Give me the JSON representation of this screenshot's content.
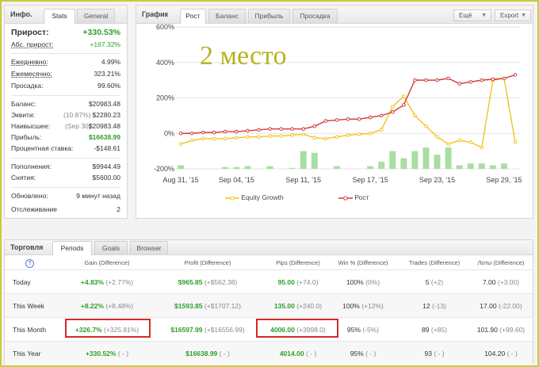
{
  "colors": {
    "green": "#2e9e2e",
    "red_line": "#d43a3a",
    "yellow_line": "#f0c419",
    "bar": "#a9dea2",
    "highlight": "#d22a2a",
    "frame": "#c8cc3a"
  },
  "info": {
    "title": "Инфо.",
    "tabs": [
      "Stats",
      "General"
    ],
    "rows": [
      {
        "label": "Прирост:",
        "value": "+330.53%"
      },
      {
        "label": "Абс. прирост:",
        "value": "+167.32%"
      },
      {
        "label": "Ежедневно:",
        "value": "4.99%"
      },
      {
        "label": "Ежемесячно:",
        "value": "323.21%"
      },
      {
        "label": "Просадка:",
        "value": "99.60%"
      },
      {
        "label": "Баланс:",
        "value": "$20983.48"
      },
      {
        "label": "Эквити:",
        "note": "(10.87%)",
        "value": "$2280.23"
      },
      {
        "label": "Наивысшее:",
        "note": "(Sep 30)",
        "value": "$20983.48"
      },
      {
        "label": "Прибыль:",
        "value": "$16638.99"
      },
      {
        "label": "Процентная ставка:",
        "value": "-$148.61"
      },
      {
        "label": "Пополнения:",
        "value": "$9944.49"
      },
      {
        "label": "Снятия:",
        "value": "$5600.00"
      },
      {
        "label": "Обновлено:",
        "value": "9 минут назад"
      },
      {
        "label": "Отслеживание",
        "value": "2"
      }
    ]
  },
  "graph": {
    "title": "График",
    "tabs": [
      "Рост",
      "Баланс",
      "Прибыль",
      "Просадка"
    ],
    "menu_label": "Ещё",
    "export_label": "Export",
    "overlay_text": "2 место",
    "caret": "▼"
  },
  "chart_data": {
    "type": "line",
    "ylim": [
      -200,
      600
    ],
    "yticks": [
      "600%",
      "400%",
      "200%",
      "0%",
      "-200%"
    ],
    "yticks_values": [
      600,
      400,
      200,
      0,
      -200
    ],
    "xlabels": [
      "Aug 31, '15",
      "Sep 04, '15",
      "Sep 11, '15",
      "Sep 17, '15",
      "Sep 23, '15",
      "Sep 29, '15"
    ],
    "xlabels_index": [
      0,
      5,
      11,
      17,
      23,
      29
    ],
    "n": 31,
    "series": [
      {
        "name": "Equity Growth",
        "values": [
          -60,
          -40,
          -30,
          -30,
          -30,
          -25,
          -20,
          -20,
          -15,
          -15,
          -10,
          -5,
          -25,
          -30,
          -20,
          -10,
          -5,
          0,
          20,
          150,
          210,
          100,
          40,
          -20,
          -60,
          -40,
          -50,
          -80,
          300,
          310,
          -50
        ]
      },
      {
        "name": "Рост",
        "values": [
          0,
          0,
          5,
          5,
          10,
          10,
          15,
          20,
          25,
          25,
          25,
          25,
          40,
          70,
          75,
          80,
          80,
          90,
          100,
          120,
          160,
          300,
          300,
          300,
          310,
          280,
          290,
          300,
          305,
          310,
          330
        ]
      }
    ],
    "bars": [
      -180,
      -200,
      -200,
      -200,
      -190,
      -190,
      -185,
      -200,
      -185,
      -200,
      -195,
      -100,
      -110,
      -200,
      -185,
      -200,
      -200,
      -185,
      -160,
      -100,
      -140,
      -100,
      -80,
      -120,
      -80,
      -180,
      -170,
      -170,
      -180,
      -170,
      -200
    ]
  },
  "trading": {
    "title": "Торговля",
    "tabs": [
      "Periods",
      "Goals",
      "Browser"
    ],
    "help_icon": "?",
    "headers": [
      "Gain (Difference)",
      "Profit (Difference)",
      "Pips (Difference)",
      "Win % (Difference)",
      "Trades (Difference)",
      "Лоты (Difference)"
    ],
    "rows": [
      {
        "period": "Today",
        "gain": "+4.83%",
        "gain_d": "(+2.77%)",
        "profit": "$965.85",
        "profit_d": "(+$562.38)",
        "pips": "95.00",
        "pips_d": "(+74.0)",
        "win": "100%",
        "win_d": "(0%)",
        "trades": "5",
        "trades_d": "(+2)",
        "lots": "7.00",
        "lots_d": "(+3.00)"
      },
      {
        "period": "This Week",
        "gain": "+8.22%",
        "gain_d": "(+8.48%)",
        "profit": "$1593.85",
        "profit_d": "(+$1707.12)",
        "pips": "135.00",
        "pips_d": "(+240.0)",
        "win": "100%",
        "win_d": "(+12%)",
        "trades": "12",
        "trades_d": "(-13)",
        "lots": "17.00",
        "lots_d": "(-22.00)"
      },
      {
        "period": "This Month",
        "gain": "+326.7%",
        "gain_d": "(+325.81%)",
        "profit": "$16597.99",
        "profit_d": "(+$16556.99)",
        "pips": "4006.00",
        "pips_d": "(+3998.0)",
        "win": "95%",
        "win_d": "(-5%)",
        "trades": "89",
        "trades_d": "(+85)",
        "lots": "101.90",
        "lots_d": "(+99.60)"
      },
      {
        "period": "This Year",
        "gain": "+330.52%",
        "gain_d": "( - )",
        "profit": "$16638.99",
        "profit_d": "( - )",
        "pips": "4014.00",
        "pips_d": "( - )",
        "win": "95%",
        "win_d": "( - )",
        "trades": "93",
        "trades_d": "( - )",
        "lots": "104.20",
        "lots_d": "( - )"
      }
    ]
  }
}
